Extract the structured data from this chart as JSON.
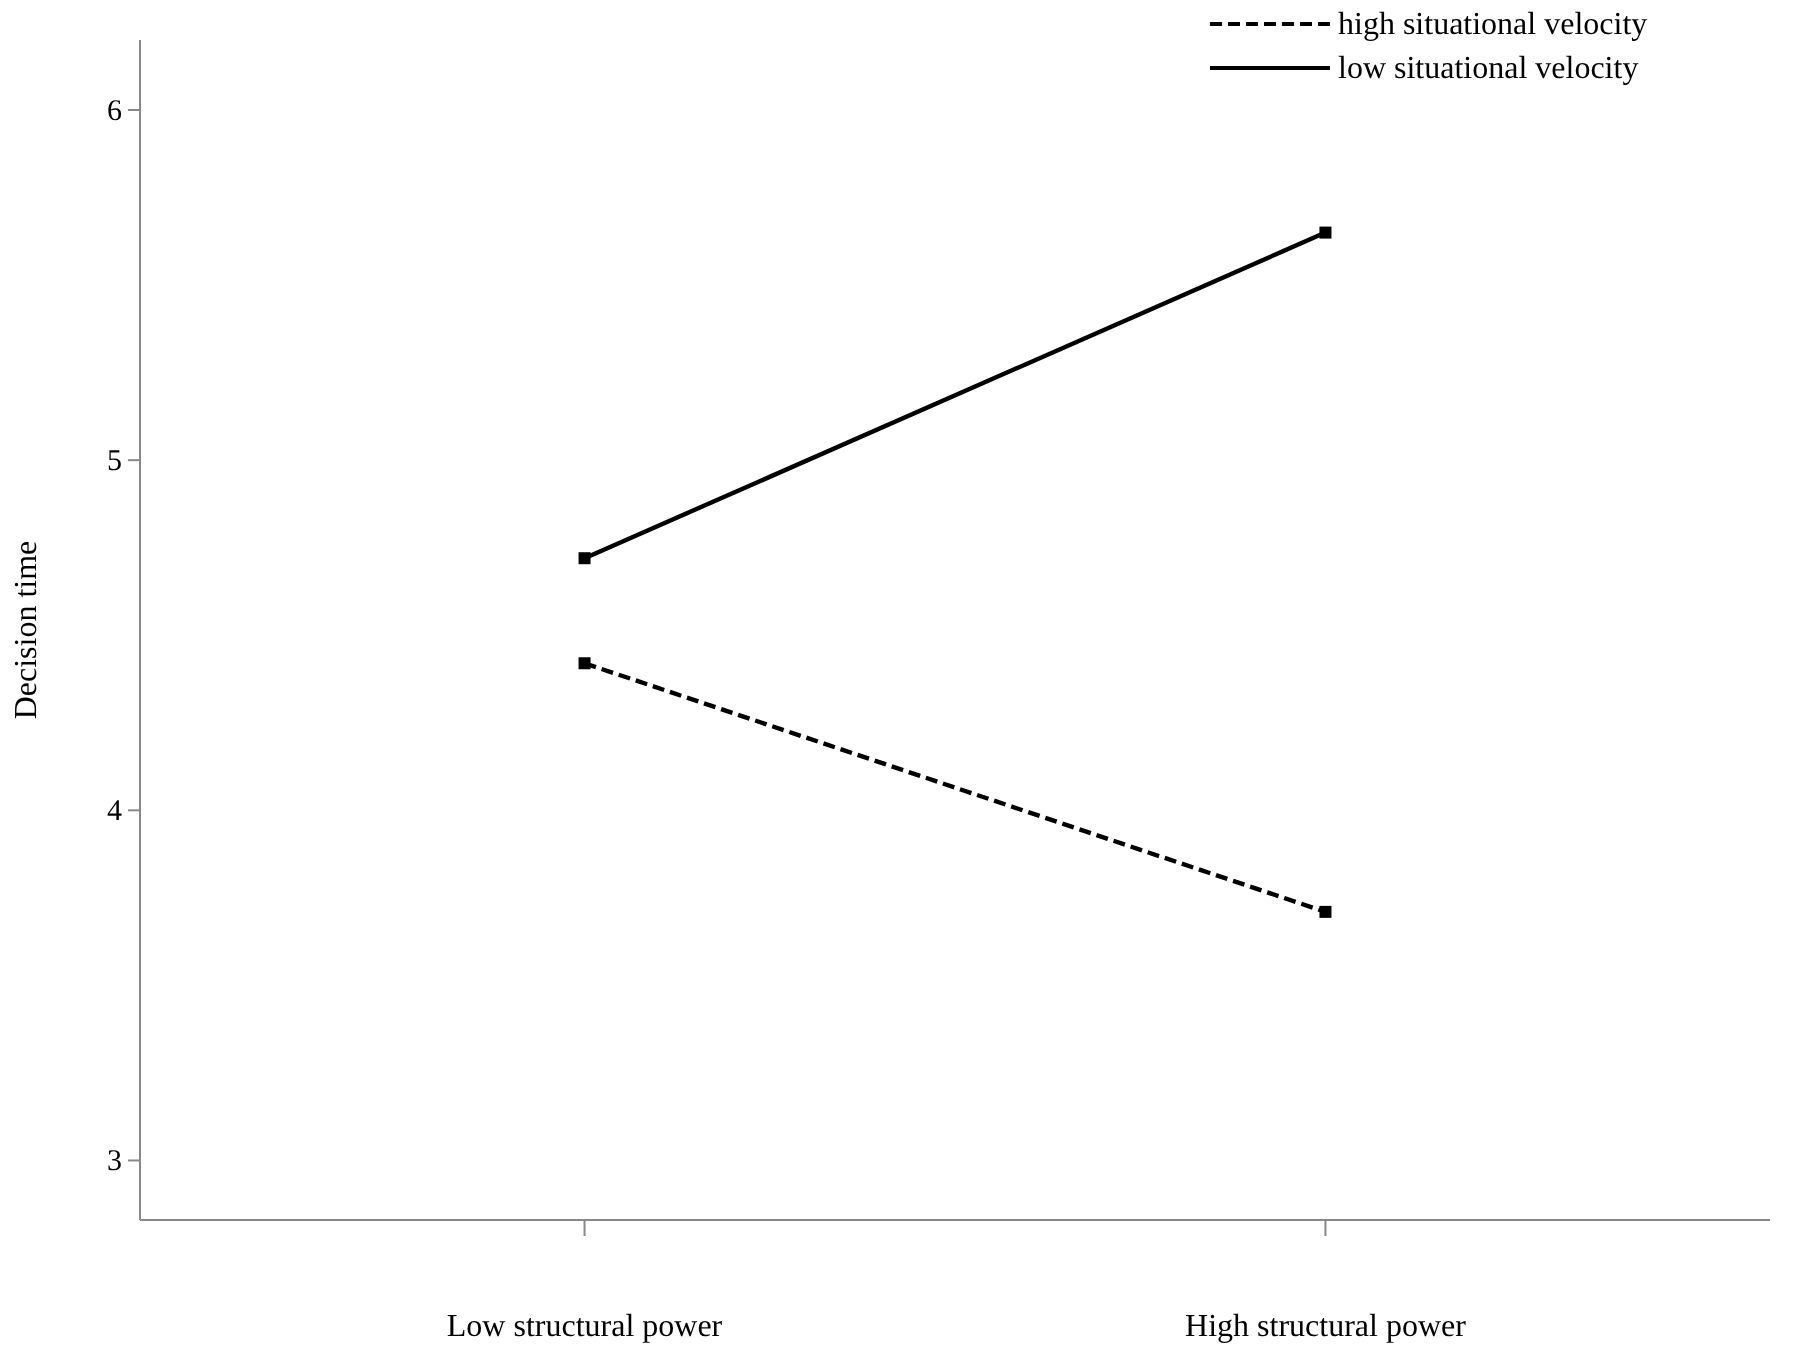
{
  "chart_data": {
    "type": "line",
    "ylabel": "Decision time",
    "categories": [
      "Low structural power",
      "High structural power"
    ],
    "ylim": [
      2.83,
      6.2
    ],
    "yticks": [
      3,
      4,
      5,
      6
    ],
    "grid": false,
    "legend": "top right",
    "marker": "square",
    "series": [
      {
        "name": "high situational velocity",
        "color": "#000000",
        "line_style": "dashed",
        "values": [
          4.42,
          3.71
        ]
      },
      {
        "name": "low situational velocity",
        "color": "#000000",
        "line_style": "solid",
        "values": [
          4.72,
          5.65
        ]
      }
    ]
  }
}
